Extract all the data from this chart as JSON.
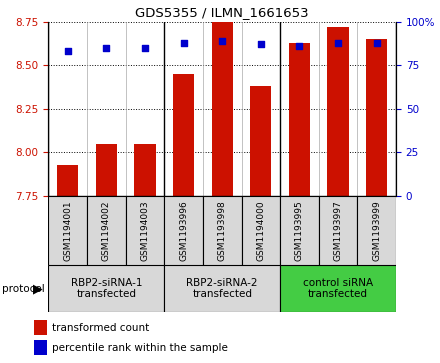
{
  "title": "GDS5355 / ILMN_1661653",
  "samples": [
    "GSM1194001",
    "GSM1194002",
    "GSM1194003",
    "GSM1193996",
    "GSM1193998",
    "GSM1194000",
    "GSM1193995",
    "GSM1193997",
    "GSM1193999"
  ],
  "red_values": [
    7.93,
    8.05,
    8.05,
    8.45,
    8.85,
    8.38,
    8.63,
    8.72,
    8.65
  ],
  "blue_values": [
    83,
    85,
    85,
    88,
    89,
    87,
    86,
    88,
    88
  ],
  "groups": [
    {
      "label": "RBP2-siRNA-1\ntransfected",
      "start": 0,
      "end": 3,
      "color": "#d8d8d8"
    },
    {
      "label": "RBP2-siRNA-2\ntransfected",
      "start": 3,
      "end": 6,
      "color": "#d8d8d8"
    },
    {
      "label": "control siRNA\ntransfected",
      "start": 6,
      "end": 9,
      "color": "#44cc44"
    }
  ],
  "sample_cell_color": "#d8d8d8",
  "ylim_left": [
    7.75,
    8.75
  ],
  "ylim_right": [
    0,
    100
  ],
  "yticks_left": [
    7.75,
    8.0,
    8.25,
    8.5,
    8.75
  ],
  "yticks_right": [
    0,
    25,
    50,
    75,
    100
  ],
  "bar_color": "#cc1100",
  "dot_color": "#0000cc",
  "bar_width": 0.55,
  "background_color": "#ffffff",
  "plot_bg": "#ffffff",
  "tick_label_color_left": "#cc1100",
  "tick_label_color_right": "#0000cc",
  "legend_red": "transformed count",
  "legend_blue": "percentile rank within the sample",
  "protocol_label": "protocol"
}
